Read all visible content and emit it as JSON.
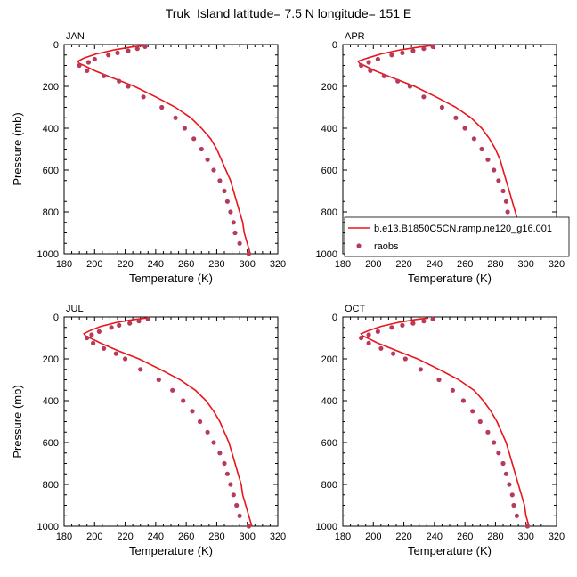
{
  "figure_title": "Truk_Island  latitude= 7.5 N longitude= 151 E",
  "colors": {
    "model_line": "#e8151b",
    "raobs_marker": "#b83a5a",
    "axes": "#000000"
  },
  "legend": {
    "model_label": "b.e13.B1850C5CN.ramp.ne120_g16.001",
    "obs_label": "raobs",
    "placement": "right of APR panel, bottom"
  },
  "chart_data": [
    {
      "type": "line",
      "title": "JAN",
      "xlabel": "Temperature (K)",
      "ylabel": "Pressure (mb)",
      "xlim": [
        180,
        320
      ],
      "ylim": [
        1000,
        0
      ],
      "xticks": [
        "180",
        "200",
        "220",
        "240",
        "260",
        "280",
        "300",
        "320"
      ],
      "yticks": [
        "0",
        "200",
        "400",
        "600",
        "800",
        "1000"
      ],
      "series": [
        {
          "name": "b.e13.B1850C5CN.ramp.ne120_g16.001",
          "kind": "line",
          "points": [
            [
              232,
              5
            ],
            [
              224,
              12
            ],
            [
              213,
              25
            ],
            [
              201,
              45
            ],
            [
              193,
              65
            ],
            [
              189,
              80
            ],
            [
              190,
              90
            ],
            [
              193,
              100
            ],
            [
              200,
              125
            ],
            [
              212,
              160
            ],
            [
              226,
              200
            ],
            [
              240,
              250
            ],
            [
              253,
              300
            ],
            [
              263,
              350
            ],
            [
              270,
              400
            ],
            [
              276,
              450
            ],
            [
              280,
              500
            ],
            [
              283,
              550
            ],
            [
              286,
              600
            ],
            [
              289,
              650
            ],
            [
              291,
              700
            ],
            [
              293,
              750
            ],
            [
              295,
              800
            ],
            [
              297,
              850
            ],
            [
              298,
              900
            ],
            [
              300,
              950
            ],
            [
              302,
              1000
            ]
          ]
        },
        {
          "name": "raobs",
          "kind": "scatter",
          "points": [
            [
              233,
              10
            ],
            [
              228,
              20
            ],
            [
              222,
              30
            ],
            [
              215,
              40
            ],
            [
              209,
              50
            ],
            [
              200,
              70
            ],
            [
              196,
              85
            ],
            [
              190,
              100
            ],
            [
              195,
              125
            ],
            [
              206,
              150
            ],
            [
              216,
              175
            ],
            [
              222,
              200
            ],
            [
              232,
              250
            ],
            [
              244,
              300
            ],
            [
              253,
              350
            ],
            [
              259,
              400
            ],
            [
              265,
              450
            ],
            [
              270,
              500
            ],
            [
              274,
              550
            ],
            [
              278,
              600
            ],
            [
              282,
              650
            ],
            [
              285,
              700
            ],
            [
              287,
              750
            ],
            [
              289,
              800
            ],
            [
              291,
              850
            ],
            [
              292,
              900
            ],
            [
              295,
              950
            ],
            [
              301,
              1000
            ]
          ]
        }
      ]
    },
    {
      "type": "line",
      "title": "APR",
      "xlabel": "Temperature (K)",
      "ylabel": "",
      "xlim": [
        180,
        320
      ],
      "ylim": [
        1000,
        0
      ],
      "xticks": [
        "180",
        "200",
        "220",
        "240",
        "260",
        "280",
        "300",
        "320"
      ],
      "yticks": [
        "0",
        "200",
        "400",
        "600",
        "800",
        "1000"
      ],
      "series": [
        {
          "name": "b.e13.B1850C5CN.ramp.ne120_g16.001",
          "kind": "line",
          "points": [
            [
              238,
              5
            ],
            [
              230,
              12
            ],
            [
              218,
              25
            ],
            [
              205,
              45
            ],
            [
              196,
              65
            ],
            [
              190,
              80
            ],
            [
              191,
              90
            ],
            [
              194,
              100
            ],
            [
              201,
              125
            ],
            [
              213,
              160
            ],
            [
              227,
              200
            ],
            [
              241,
              250
            ],
            [
              254,
              300
            ],
            [
              264,
              350
            ],
            [
              271,
              400
            ],
            [
              276,
              450
            ],
            [
              280,
              500
            ],
            [
              283,
              550
            ],
            [
              285,
              600
            ],
            [
              287,
              650
            ],
            [
              289,
              700
            ],
            [
              291,
              750
            ],
            [
              293,
              800
            ],
            [
              295,
              850
            ],
            [
              297,
              900
            ],
            [
              299,
              950
            ],
            [
              301,
              1000
            ]
          ]
        },
        {
          "name": "raobs",
          "kind": "scatter",
          "points": [
            [
              239,
              10
            ],
            [
              233,
              20
            ],
            [
              226,
              30
            ],
            [
              219,
              40
            ],
            [
              212,
              50
            ],
            [
              203,
              70
            ],
            [
              197,
              85
            ],
            [
              192,
              100
            ],
            [
              198,
              125
            ],
            [
              207,
              150
            ],
            [
              216,
              175
            ],
            [
              224,
              200
            ],
            [
              233,
              250
            ],
            [
              245,
              300
            ],
            [
              254,
              350
            ],
            [
              260,
              400
            ],
            [
              266,
              450
            ],
            [
              271,
              500
            ],
            [
              275,
              550
            ],
            [
              279,
              600
            ],
            [
              282,
              650
            ],
            [
              285,
              700
            ],
            [
              287,
              750
            ],
            [
              288,
              800
            ],
            [
              290,
              850
            ],
            [
              291,
              900
            ],
            [
              294,
              950
            ],
            [
              301,
              1000
            ]
          ]
        }
      ]
    },
    {
      "type": "line",
      "title": "JUL",
      "xlabel": "Temperature (K)",
      "ylabel": "Pressure (mb)",
      "xlim": [
        180,
        320
      ],
      "ylim": [
        1000,
        0
      ],
      "xticks": [
        "180",
        "200",
        "220",
        "240",
        "260",
        "280",
        "300",
        "320"
      ],
      "yticks": [
        "0",
        "200",
        "400",
        "600",
        "800",
        "1000"
      ],
      "series": [
        {
          "name": "b.e13.B1850C5CN.ramp.ne120_g16.001",
          "kind": "line",
          "points": [
            [
              234,
              5
            ],
            [
              226,
              12
            ],
            [
              215,
              25
            ],
            [
              204,
              45
            ],
            [
              197,
              65
            ],
            [
              193,
              80
            ],
            [
              194,
              90
            ],
            [
              197,
              100
            ],
            [
              204,
              125
            ],
            [
              215,
              160
            ],
            [
              229,
              200
            ],
            [
              243,
              250
            ],
            [
              256,
              300
            ],
            [
              266,
              350
            ],
            [
              273,
              400
            ],
            [
              278,
              450
            ],
            [
              282,
              500
            ],
            [
              285,
              550
            ],
            [
              288,
              600
            ],
            [
              290,
              650
            ],
            [
              292,
              700
            ],
            [
              294,
              750
            ],
            [
              296,
              800
            ],
            [
              297,
              850
            ],
            [
              299,
              900
            ],
            [
              301,
              950
            ],
            [
              303,
              1000
            ]
          ]
        },
        {
          "name": "raobs",
          "kind": "scatter",
          "points": [
            [
              235,
              10
            ],
            [
              229,
              20
            ],
            [
              223,
              30
            ],
            [
              216,
              40
            ],
            [
              211,
              50
            ],
            [
              203,
              70
            ],
            [
              198,
              85
            ],
            [
              195,
              100
            ],
            [
              199,
              125
            ],
            [
              206,
              150
            ],
            [
              214,
              175
            ],
            [
              220,
              200
            ],
            [
              230,
              250
            ],
            [
              242,
              300
            ],
            [
              251,
              350
            ],
            [
              258,
              400
            ],
            [
              264,
              450
            ],
            [
              269,
              500
            ],
            [
              274,
              550
            ],
            [
              278,
              600
            ],
            [
              282,
              650
            ],
            [
              285,
              700
            ],
            [
              287,
              750
            ],
            [
              289,
              800
            ],
            [
              291,
              850
            ],
            [
              293,
              900
            ],
            [
              295,
              950
            ],
            [
              301,
              1000
            ]
          ]
        }
      ]
    },
    {
      "type": "line",
      "title": "OCT",
      "xlabel": "Temperature (K)",
      "ylabel": "",
      "xlim": [
        180,
        320
      ],
      "ylim": [
        1000,
        0
      ],
      "xticks": [
        "180",
        "200",
        "220",
        "240",
        "260",
        "280",
        "300",
        "320"
      ],
      "yticks": [
        "0",
        "200",
        "400",
        "600",
        "800",
        "1000"
      ],
      "series": [
        {
          "name": "b.e13.B1850C5CN.ramp.ne120_g16.001",
          "kind": "line",
          "points": [
            [
              236,
              5
            ],
            [
              228,
              12
            ],
            [
              217,
              25
            ],
            [
              205,
              45
            ],
            [
              197,
              65
            ],
            [
              192,
              80
            ],
            [
              193,
              90
            ],
            [
              196,
              100
            ],
            [
              203,
              125
            ],
            [
              215,
              160
            ],
            [
              229,
              200
            ],
            [
              243,
              250
            ],
            [
              256,
              300
            ],
            [
              266,
              350
            ],
            [
              272,
              400
            ],
            [
              277,
              450
            ],
            [
              281,
              500
            ],
            [
              284,
              550
            ],
            [
              287,
              600
            ],
            [
              289,
              650
            ],
            [
              291,
              700
            ],
            [
              293,
              750
            ],
            [
              295,
              800
            ],
            [
              297,
              850
            ],
            [
              299,
              900
            ],
            [
              300,
              950
            ],
            [
              302,
              1000
            ]
          ]
        },
        {
          "name": "raobs",
          "kind": "scatter",
          "points": [
            [
              239,
              10
            ],
            [
              233,
              20
            ],
            [
              226,
              30
            ],
            [
              219,
              40
            ],
            [
              212,
              50
            ],
            [
              203,
              70
            ],
            [
              197,
              85
            ],
            [
              192,
              100
            ],
            [
              197,
              125
            ],
            [
              205,
              150
            ],
            [
              213,
              175
            ],
            [
              221,
              200
            ],
            [
              231,
              250
            ],
            [
              243,
              300
            ],
            [
              252,
              350
            ],
            [
              259,
              400
            ],
            [
              265,
              450
            ],
            [
              270,
              500
            ],
            [
              275,
              550
            ],
            [
              279,
              600
            ],
            [
              282,
              650
            ],
            [
              285,
              700
            ],
            [
              287,
              750
            ],
            [
              289,
              800
            ],
            [
              291,
              850
            ],
            [
              292,
              900
            ],
            [
              294,
              950
            ],
            [
              301,
              1000
            ]
          ]
        }
      ]
    }
  ]
}
